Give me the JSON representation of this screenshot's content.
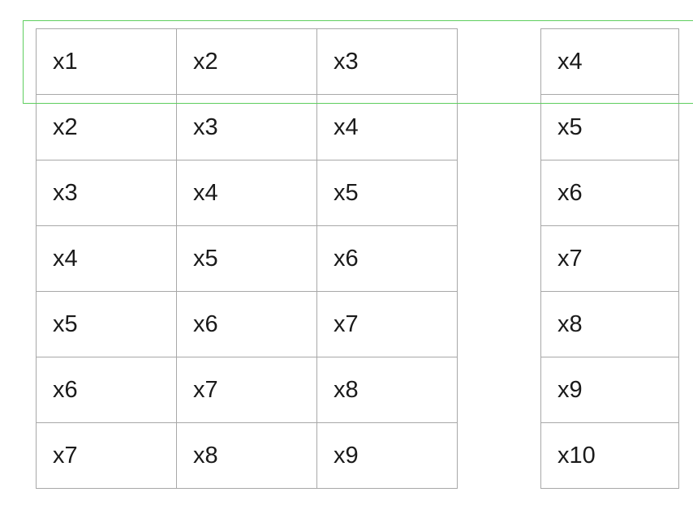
{
  "features": [
    [
      "x1",
      "x2",
      "x3"
    ],
    [
      "x2",
      "x3",
      "x4"
    ],
    [
      "x3",
      "x4",
      "x5"
    ],
    [
      "x4",
      "x5",
      "x6"
    ],
    [
      "x5",
      "x6",
      "x7"
    ],
    [
      "x6",
      "x7",
      "x8"
    ],
    [
      "x7",
      "x8",
      "x9"
    ]
  ],
  "targets": [
    "x4",
    "x5",
    "x6",
    "x7",
    "x8",
    "x9",
    "x10"
  ],
  "colors": {
    "grid_line": "#a8a8a8",
    "highlight": "#5fce5f",
    "text": "#1a1a1a"
  }
}
